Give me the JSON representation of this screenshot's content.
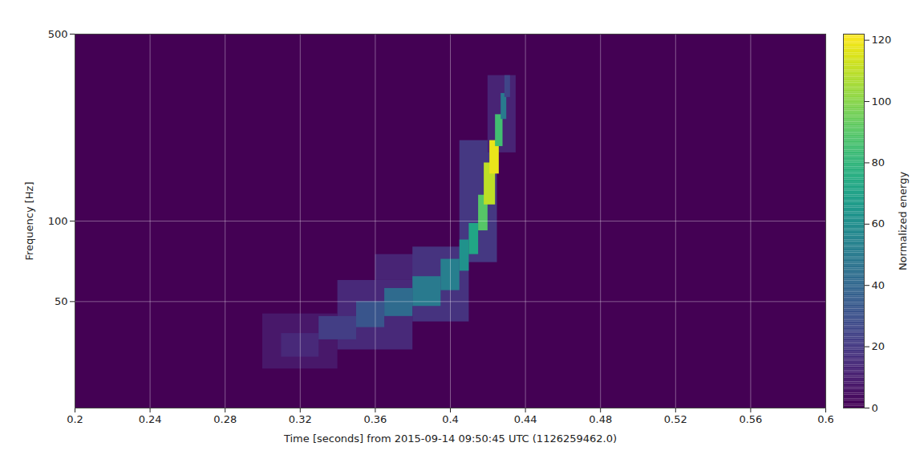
{
  "chart_data": {
    "type": "heatmap",
    "xlabel": "Time [seconds] from 2015-09-14 09:50:45 UTC (1126259462.0)",
    "ylabel": "Frequency [Hz]",
    "xlim": [
      0.2,
      0.6
    ],
    "xticks": [
      0.2,
      0.24,
      0.28,
      0.32,
      0.36,
      0.4,
      0.44,
      0.48,
      0.52,
      0.56,
      0.6
    ],
    "ylim": [
      20,
      500
    ],
    "yticks": [
      50,
      100,
      500
    ],
    "log": "y",
    "grid": true,
    "color": "viridis",
    "colorbar": {
      "label": "Normalized energy",
      "range": [
        0,
        122
      ],
      "ticks": [
        0,
        20,
        40,
        60,
        80,
        100,
        120
      ]
    },
    "cells": [
      {
        "time": [
          0.3,
          0.34
        ],
        "frequency": [
          28,
          45
        ],
        "energy": 8
      },
      {
        "time": [
          0.34,
          0.38
        ],
        "frequency": [
          33,
          60
        ],
        "energy": 14
      },
      {
        "time": [
          0.36,
          0.4
        ],
        "frequency": [
          60,
          75
        ],
        "energy": 12
      },
      {
        "time": [
          0.38,
          0.41
        ],
        "frequency": [
          42,
          80
        ],
        "energy": 18
      },
      {
        "time": [
          0.405,
          0.425
        ],
        "frequency": [
          70,
          200
        ],
        "energy": 20
      },
      {
        "time": [
          0.42,
          0.435
        ],
        "frequency": [
          180,
          350
        ],
        "energy": 12
      },
      {
        "time": [
          0.31,
          0.33
        ],
        "frequency": [
          31,
          38
        ],
        "energy": 14
      },
      {
        "time": [
          0.33,
          0.35
        ],
        "frequency": [
          36,
          44
        ],
        "energy": 22
      },
      {
        "time": [
          0.35,
          0.365
        ],
        "frequency": [
          40,
          50
        ],
        "energy": 32
      },
      {
        "time": [
          0.365,
          0.38
        ],
        "frequency": [
          44,
          56
        ],
        "energy": 42
      },
      {
        "time": [
          0.38,
          0.395
        ],
        "frequency": [
          48,
          62
        ],
        "energy": 50
      },
      {
        "time": [
          0.395,
          0.405
        ],
        "frequency": [
          55,
          72
        ],
        "energy": 52
      },
      {
        "time": [
          0.405,
          0.41
        ],
        "frequency": [
          65,
          85
        ],
        "energy": 62
      },
      {
        "time": [
          0.41,
          0.415
        ],
        "frequency": [
          75,
          98
        ],
        "energy": 72
      },
      {
        "time": [
          0.415,
          0.42
        ],
        "frequency": [
          92,
          125
        ],
        "energy": 90
      },
      {
        "time": [
          0.418,
          0.424
        ],
        "frequency": [
          115,
          165
        ],
        "energy": 110
      },
      {
        "time": [
          0.421,
          0.426
        ],
        "frequency": [
          150,
          200
        ],
        "energy": 118
      },
      {
        "time": [
          0.424,
          0.428
        ],
        "frequency": [
          190,
          250
        ],
        "energy": 85
      },
      {
        "time": [
          0.427,
          0.43
        ],
        "frequency": [
          240,
          300
        ],
        "energy": 50
      },
      {
        "time": [
          0.429,
          0.432
        ],
        "frequency": [
          290,
          350
        ],
        "energy": 25
      }
    ]
  }
}
